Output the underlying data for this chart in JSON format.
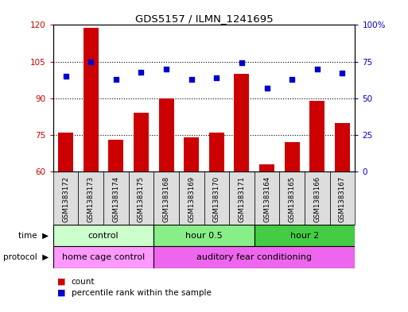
{
  "title": "GDS5157 / ILMN_1241695",
  "samples": [
    "GSM1383172",
    "GSM1383173",
    "GSM1383174",
    "GSM1383175",
    "GSM1383168",
    "GSM1383169",
    "GSM1383170",
    "GSM1383171",
    "GSM1383164",
    "GSM1383165",
    "GSM1383166",
    "GSM1383167"
  ],
  "counts": [
    76,
    119,
    73,
    84,
    90,
    74,
    76,
    100,
    63,
    72,
    89,
    80
  ],
  "percentiles": [
    65,
    75,
    63,
    68,
    70,
    63,
    64,
    74,
    57,
    63,
    70,
    67
  ],
  "bar_color": "#cc0000",
  "dot_color": "#0000cc",
  "ylim_left": [
    60,
    120
  ],
  "ylim_right": [
    0,
    100
  ],
  "yticks_left": [
    60,
    75,
    90,
    105,
    120
  ],
  "ytick_labels_left": [
    "60",
    "75",
    "90",
    "105",
    "120"
  ],
  "yticks_right": [
    0,
    25,
    50,
    75,
    100
  ],
  "ytick_labels_right": [
    "0",
    "25",
    "50",
    "75",
    "100%"
  ],
  "time_groups": [
    {
      "label": "control",
      "start": 0,
      "end": 4,
      "color": "#ccffcc"
    },
    {
      "label": "hour 0.5",
      "start": 4,
      "end": 8,
      "color": "#88ee88"
    },
    {
      "label": "hour 2",
      "start": 8,
      "end": 12,
      "color": "#44cc44"
    }
  ],
  "protocol_groups": [
    {
      "label": "home cage control",
      "start": 0,
      "end": 4,
      "color": "#ff99ff"
    },
    {
      "label": "auditory fear conditioning",
      "start": 4,
      "end": 12,
      "color": "#ee66ee"
    }
  ],
  "legend_count_label": "count",
  "legend_pct_label": "percentile rank within the sample",
  "background_color": "#ffffff",
  "xticklabel_bg": "#dddddd",
  "grid_color": "#000000"
}
